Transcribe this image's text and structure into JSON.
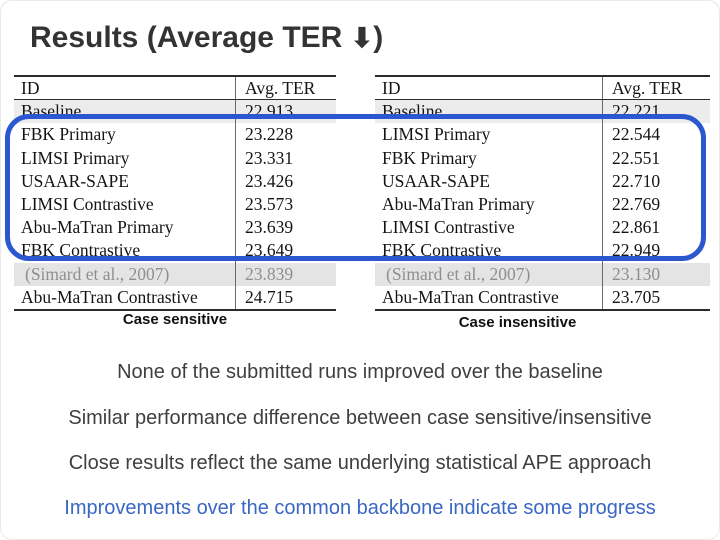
{
  "slide": {
    "title_prefix": "Results (Average TER ",
    "title_arrow": "⬇",
    "title_suffix": ")",
    "captions": {
      "left": "Case sensitive",
      "right": "Case insensitive"
    },
    "bullets": [
      {
        "text": "None of the submitted runs improved over the baseline",
        "color": "#3f3f3f"
      },
      {
        "text": "Similar performance difference between case sensitive/insensitive",
        "color": "#3f3f3f"
      },
      {
        "text": "Close results reflect the same underlying statistical APE approach",
        "color": "#3f3f3f"
      },
      {
        "text": "Improvements over the common backbone indicate some progress",
        "color": "#3a66c4"
      }
    ],
    "highlight_color": "#2b57cf",
    "title_color": "#333333"
  },
  "tables": {
    "left": {
      "name": "case-sensitive-results",
      "headers": [
        "ID",
        "Avg. TER"
      ],
      "rows": [
        {
          "id": "Baseline",
          "value": "22.913",
          "variant": "baseline"
        },
        {
          "id": "FBK Primary",
          "value": "23.228",
          "variant": ""
        },
        {
          "id": "LIMSI Primary",
          "value": "23.331",
          "variant": ""
        },
        {
          "id": "USAAR-SAPE",
          "value": "23.426",
          "variant": ""
        },
        {
          "id": "LIMSI Contrastive",
          "value": "23.573",
          "variant": ""
        },
        {
          "id": "Abu-MaTran Primary",
          "value": "23.639",
          "variant": ""
        },
        {
          "id": "FBK Contrastive",
          "value": "23.649",
          "variant": ""
        },
        {
          "id": "(Simard et al., 2007)",
          "value": "23.839",
          "variant": "simard"
        },
        {
          "id": "Abu-MaTran Contrastive",
          "value": "24.715",
          "variant": ""
        }
      ]
    },
    "right": {
      "name": "case-insensitive-results",
      "headers": [
        "ID",
        "Avg. TER"
      ],
      "rows": [
        {
          "id": "Baseline",
          "value": "22.221",
          "variant": "baseline"
        },
        {
          "id": "LIMSI Primary",
          "value": "22.544",
          "variant": ""
        },
        {
          "id": "FBK Primary",
          "value": "22.551",
          "variant": ""
        },
        {
          "id": "USAAR-SAPE",
          "value": "22.710",
          "variant": ""
        },
        {
          "id": "Abu-MaTran Primary",
          "value": "22.769",
          "variant": ""
        },
        {
          "id": "LIMSI Contrastive",
          "value": "22.861",
          "variant": ""
        },
        {
          "id": "FBK Contrastive",
          "value": "22.949",
          "variant": ""
        },
        {
          "id": "(Simard et al., 2007)",
          "value": "23.130",
          "variant": "simard"
        },
        {
          "id": "Abu-MaTran Contrastive",
          "value": "23.705",
          "variant": ""
        }
      ]
    }
  }
}
